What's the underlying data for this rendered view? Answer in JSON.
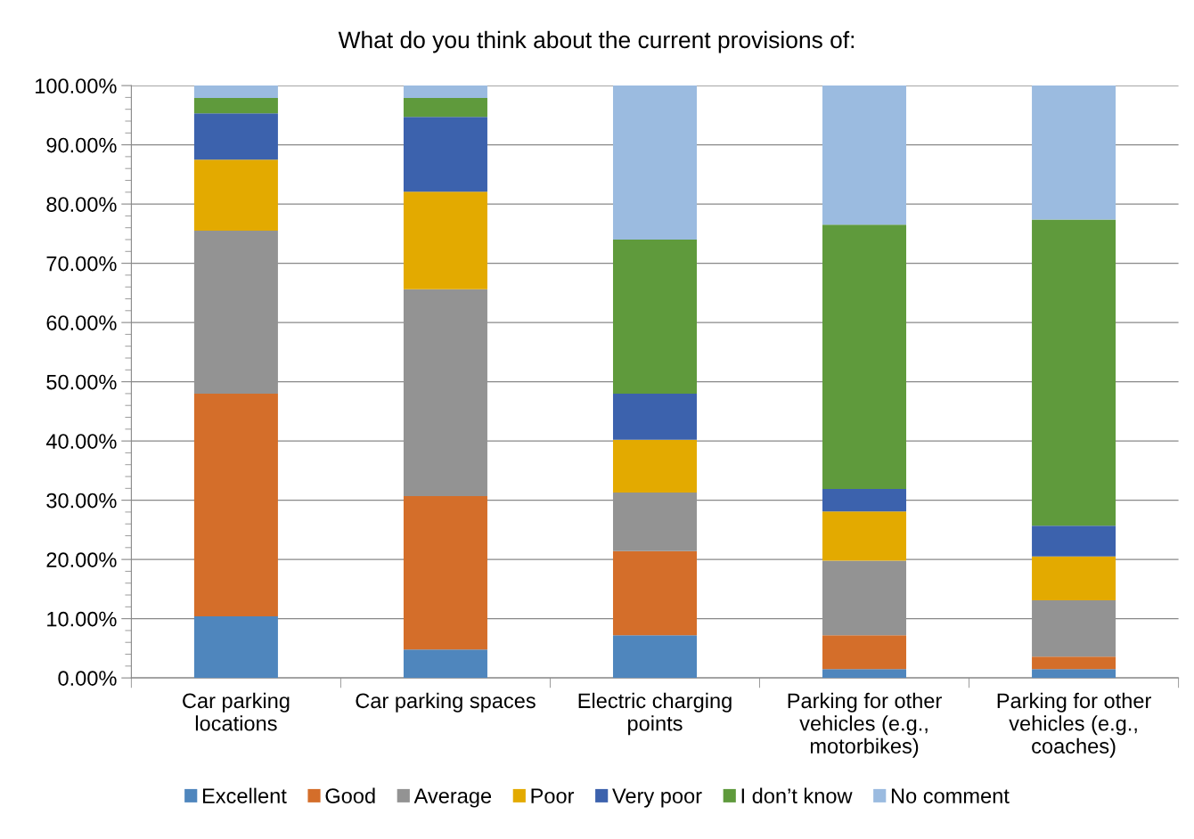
{
  "chart_data": {
    "type": "bar",
    "stacked": true,
    "title": "What do you think about the current provisions of:",
    "categories": [
      "Car parking\nlocations",
      "Car parking spaces",
      "Electric charging\npoints",
      "Parking for other\nvehicles (e.g.,\nmotorbikes)",
      "Parking for other\nvehicles (e.g.,\ncoaches)"
    ],
    "series": [
      {
        "name": "Excellent",
        "color": "#4f86bd",
        "values": [
          10.4,
          4.8,
          7.2,
          1.5,
          1.5
        ]
      },
      {
        "name": "Good",
        "color": "#d46e2a",
        "values": [
          37.6,
          25.9,
          14.2,
          5.7,
          2.1
        ]
      },
      {
        "name": "Average",
        "color": "#939393",
        "values": [
          27.5,
          34.9,
          9.9,
          12.6,
          9.5
        ]
      },
      {
        "name": "Poor",
        "color": "#e3aa00",
        "values": [
          12.0,
          16.5,
          8.9,
          8.3,
          7.4
        ]
      },
      {
        "name": "Very poor",
        "color": "#3c62ad",
        "values": [
          7.8,
          12.6,
          7.8,
          3.8,
          5.2
        ]
      },
      {
        "name": "I don’t know",
        "color": "#5f9a3c",
        "values": [
          2.6,
          3.2,
          26.0,
          44.6,
          51.7
        ]
      },
      {
        "name": "No comment",
        "color": "#9bbbe0",
        "values": [
          2.1,
          2.1,
          26.0,
          23.5,
          22.6
        ]
      }
    ],
    "ylim": [
      0,
      100
    ],
    "yticks": [
      {
        "value": 0,
        "label": "0.00%"
      },
      {
        "value": 10,
        "label": "10.00%"
      },
      {
        "value": 20,
        "label": "20.00%"
      },
      {
        "value": 30,
        "label": "30.00%"
      },
      {
        "value": 40,
        "label": "40.00%"
      },
      {
        "value": 50,
        "label": "50.00%"
      },
      {
        "value": 60,
        "label": "60.00%"
      },
      {
        "value": 70,
        "label": "70.00%"
      },
      {
        "value": 80,
        "label": "80.00%"
      },
      {
        "value": 90,
        "label": "90.00%"
      },
      {
        "value": 100,
        "label": "100.00%"
      }
    ],
    "grid": "y",
    "legend": "bottom"
  }
}
